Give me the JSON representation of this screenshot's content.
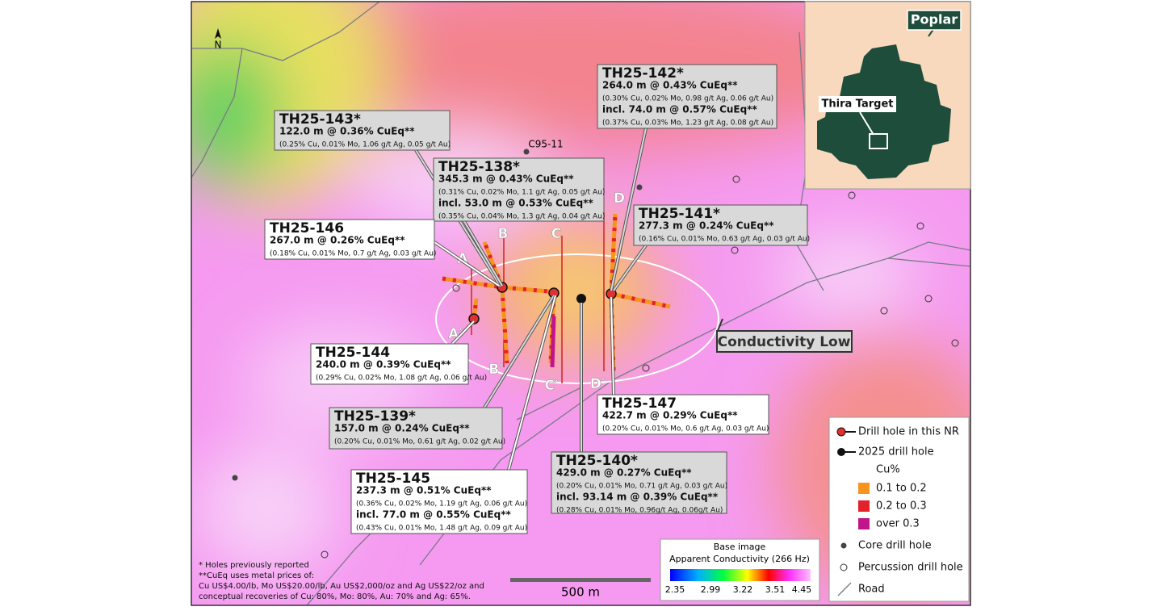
{
  "north": "N",
  "inset": {
    "region": "Poplar",
    "target": "Thira Target"
  },
  "labels": {
    "hole": "C95-11",
    "zone": "Conductivity Low",
    "scale": "500 m"
  },
  "sections": [
    "A",
    "A′",
    "B",
    "B′",
    "C",
    "C′",
    "D",
    "D′"
  ],
  "callouts": [
    {
      "title": "TH25-143*",
      "lines": [
        "122.0 m @ 0.36% CuEq**",
        "(0.25% Cu, 0.01% Mo, 1.06 g/t Ag, 0.05 g/t Au)"
      ]
    },
    {
      "title": "TH25-138*",
      "lines": [
        "345.3 m @ 0.43% CuEq**",
        "(0.31% Cu, 0.02% Mo, 1.1 g/t Ag, 0.05 g/t Au)",
        "incl. 53.0 m @ 0.53% CuEq**",
        "(0.35% Cu, 0.04% Mo, 1.3 g/t Ag, 0.04 g/t Au)"
      ]
    },
    {
      "title": "TH25-142*",
      "lines": [
        "264.0 m @ 0.43% CuEq**",
        "(0.30% Cu, 0.02% Mo, 0.98 g/t Ag, 0.06 g/t Au)",
        "incl. 74.0 m @ 0.57% CuEq**",
        "(0.37% Cu, 0.03% Mo, 1.23 g/t Ag, 0.08 g/t Au)"
      ]
    },
    {
      "title": "TH25-141*",
      "lines": [
        "277.3 m @ 0.24% CuEq**",
        "(0.16% Cu, 0.01% Mo, 0.63 g/t Ag, 0.03 g/t Au)"
      ]
    },
    {
      "title": "TH25-146",
      "lines": [
        "267.0 m @ 0.26% CuEq**",
        "(0.18% Cu, 0.01% Mo, 0.7 g/t Ag, 0.03 g/t Au)"
      ]
    },
    {
      "title": "TH25-144",
      "lines": [
        "240.0 m @ 0.39% CuEq**",
        "(0.29% Cu, 0.02% Mo, 1.08 g/t Ag, 0.06 g/t Au)"
      ]
    },
    {
      "title": "TH25-139*",
      "lines": [
        "157.0 m @ 0.24% CuEq**",
        "(0.20% Cu, 0.01% Mo, 0.61 g/t Ag, 0.02 g/t Au)"
      ]
    },
    {
      "title": "TH25-145",
      "lines": [
        "237.3 m @ 0.51% CuEq**",
        "(0.36% Cu, 0.02% Mo, 1.19 g/t Ag, 0.06 g/t Au)",
        "incl. 77.0 m @ 0.55% CuEq**",
        "(0.43% Cu, 0.01% Mo, 1.48 g/t Ag, 0.09 g/t Au)"
      ]
    },
    {
      "title": "TH25-140*",
      "lines": [
        "429.0 m @ 0.27% CuEq**",
        "(0.20% Cu, 0.01% Mo, 0.71 g/t Ag, 0.03 g/t Au)",
        "incl. 93.14 m @ 0.39% CuEq**",
        "(0.28% Cu, 0.01% Mo, 0.96g/t Ag, 0.06g/t Au)"
      ]
    },
    {
      "title": "TH25-147",
      "lines": [
        "422.7 m @ 0.29% CuEq**",
        "(0.20% Cu, 0.01% Mo, 0.6 g/t Ag, 0.03 g/t Au)"
      ]
    }
  ],
  "legend": {
    "drill_nr": "Drill hole in this NR",
    "drill_2025": "2025 drill hole",
    "cu_title": "Cu%",
    "cu_classes": [
      "0.1 to 0.2",
      "0.2 to 0.3",
      "over 0.3"
    ],
    "core": "Core drill hole",
    "percussion": "Percussion drill hole",
    "road": "Road"
  },
  "colorbar": {
    "title": [
      "Base image",
      "Apparent Conductivity (266 Hz)"
    ],
    "ticks": [
      "2.35",
      "2.99",
      "3.22",
      "3.51",
      "4.45"
    ]
  },
  "footnotes": [
    "* Holes previously reported",
    "**CuEq uses metal prices of:",
    "Cu US$4.00/lb, Mo US$20.00/lb, Au US$2,000/oz and Ag US$22/oz and",
    "conceptual recoveries of Cu: 80%, Mo: 80%, Au: 70% and Ag: 65%."
  ]
}
